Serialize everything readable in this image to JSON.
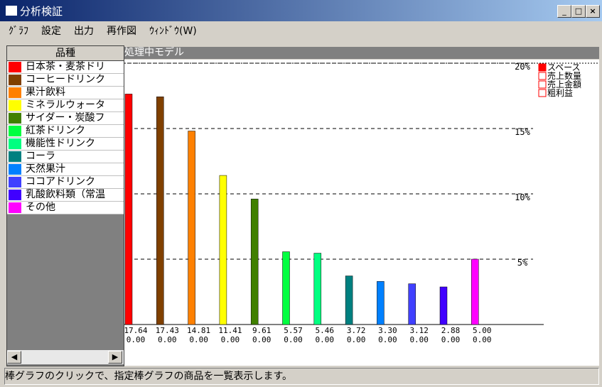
{
  "window": {
    "title": "分析検証"
  },
  "menu": [
    "ｸﾞﾗﾌ",
    "設定",
    "出力",
    "再作図",
    "ｳｨﾝﾄﾞｳ(W)"
  ],
  "list_header": "品種",
  "panel_title": "処理中モデル",
  "status": "棒グラフのクリックで、指定棒グラフの商品を一覧表示します。",
  "chart_data": {
    "type": "bar",
    "categories": [
      "日本茶・麦茶ドリ",
      "コーヒードリンク",
      "果汁飲料",
      "ミネラルウォータ",
      "サイダー・炭酸フ",
      "紅茶ドリンク",
      "機能性ドリンク",
      "コーラ",
      "天然果汁",
      "ココアドリンク",
      "乳酸飲料類（常温",
      "その他"
    ],
    "colors": [
      "#ff0000",
      "#804000",
      "#ff8000",
      "#ffff00",
      "#408000",
      "#00ff40",
      "#00ff80",
      "#008080",
      "#0080ff",
      "#4040ff",
      "#4000ff",
      "#ff00ff"
    ],
    "series": [
      {
        "name": "スペース",
        "color": "#ff0000",
        "values": [
          17.64,
          17.43,
          14.81,
          11.41,
          9.61,
          5.57,
          5.46,
          3.72,
          3.3,
          3.12,
          2.88,
          5.0
        ],
        "value_labels": [
          "17.64",
          "17.43",
          "14.81",
          "11.41",
          "9.61",
          "5.57",
          "5.46",
          "3.72",
          "3.30",
          "3.12",
          "2.88",
          "5.00"
        ]
      },
      {
        "name": "売上数量",
        "color": "#ffffff",
        "values": [
          0,
          0,
          0,
          0,
          0,
          0,
          0,
          0,
          0,
          0,
          0,
          0
        ],
        "value_labels": [
          "0.00",
          "0.00",
          "0.00",
          "0.00",
          "0.00",
          "0.00",
          "0.00",
          "0.00",
          "0.00",
          "0.00",
          "0.00",
          "0.00"
        ]
      },
      {
        "name": "売上金額",
        "color": "#ffffff"
      },
      {
        "name": "粗利益",
        "color": "#ffffff"
      }
    ],
    "ylim": [
      0,
      20
    ],
    "yticks": [
      {
        "value": 5,
        "label": "5%"
      },
      {
        "value": 10,
        "label": "10%"
      },
      {
        "value": 15,
        "label": "15%"
      },
      {
        "value": 20,
        "label": "20%"
      }
    ],
    "grid": true
  }
}
